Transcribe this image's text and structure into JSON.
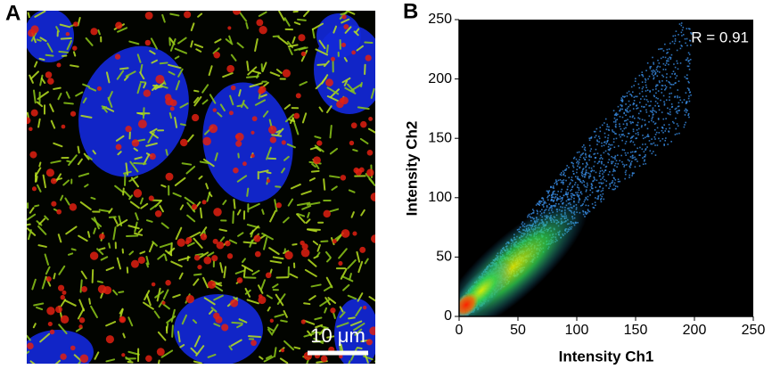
{
  "panel_labels": [
    "A",
    "B"
  ],
  "scale_bar_label": "10 μm",
  "chart_data": {
    "type": "scatter",
    "xlabel": "Intensity Ch1",
    "ylabel": "Intensity Ch2",
    "annotation": "R = 0.91",
    "xlim": [
      0,
      250
    ],
    "ylim": [
      0,
      250
    ],
    "xticks": [
      0,
      50,
      100,
      150,
      200,
      250
    ],
    "yticks": [
      0,
      50,
      100,
      150,
      200,
      250
    ]
  }
}
